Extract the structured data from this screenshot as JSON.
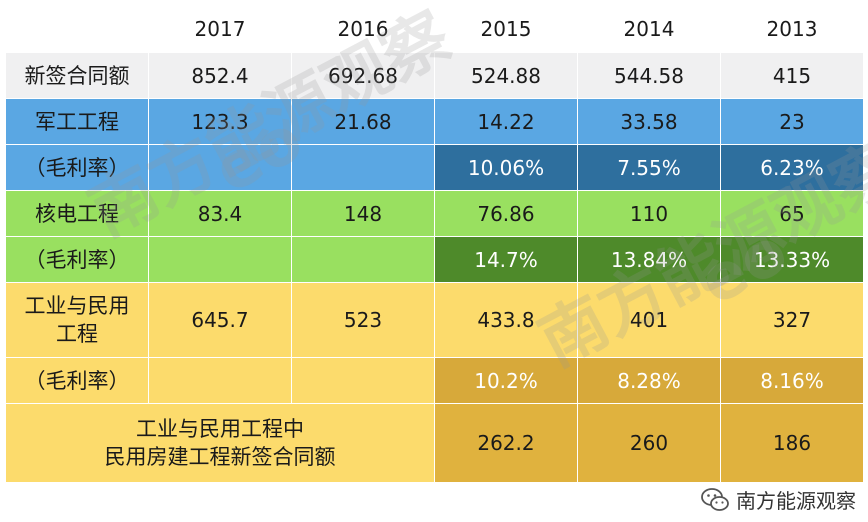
{
  "years": [
    "2017",
    "2016",
    "2015",
    "2014",
    "2013"
  ],
  "rows": [
    {
      "label": "新签合同额",
      "values": [
        "852.4",
        "692.68",
        "524.88",
        "544.58",
        "415"
      ]
    },
    {
      "label": "军工工程",
      "values": [
        "123.3",
        "21.68",
        "14.22",
        "33.58",
        "23"
      ]
    },
    {
      "label": "（毛利率）",
      "values": [
        "",
        "",
        "10.06%",
        "7.55%",
        "6.23%"
      ]
    },
    {
      "label": "核电工程",
      "values": [
        "83.4",
        "148",
        "76.86",
        "110",
        "65"
      ]
    },
    {
      "label": "（毛利率）",
      "values": [
        "",
        "",
        "14.7%",
        "13.84%",
        "13.33%"
      ]
    },
    {
      "label_line1": "工业与民用",
      "label_line2": "工程",
      "values": [
        "645.7",
        "523",
        "433.8",
        "401",
        "327"
      ]
    },
    {
      "label": "（毛利率）",
      "values": [
        "",
        "",
        "10.2%",
        "8.28%",
        "8.16%"
      ]
    },
    {
      "label_line1": "工业与民用工程中",
      "label_line2": "民用房建工程新签合同额",
      "values": [
        "262.2",
        "260",
        "186"
      ]
    }
  ],
  "watermark": {
    "text": "南方能源观察",
    "mark": "eo"
  },
  "badge": {
    "icon": "wechat-icon",
    "text": "南方能源观察"
  },
  "colors": {
    "blue": "#5aa7e3",
    "blue_dark": "#2e6f9e",
    "green": "#99e060",
    "green_dark": "#4e8a2a",
    "yellow": "#fcdb6c",
    "gold": "#d7a93a",
    "grey": "#f0f0f1"
  }
}
